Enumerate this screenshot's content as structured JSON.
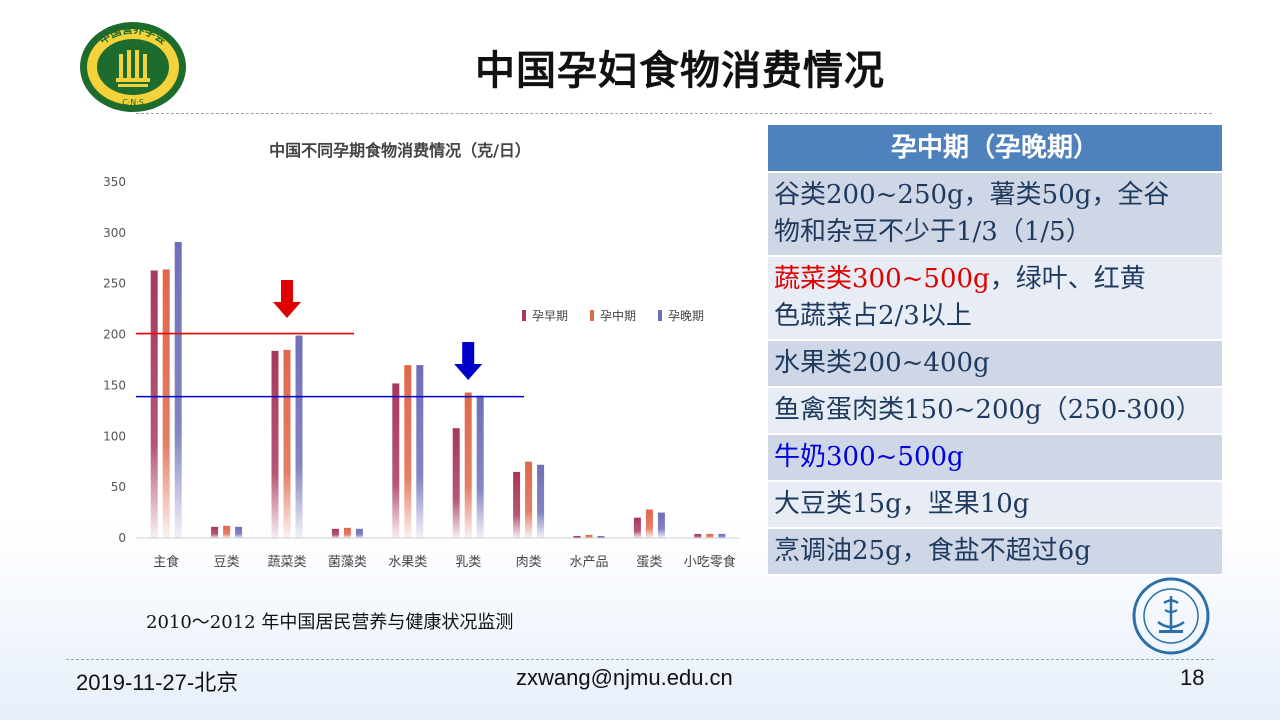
{
  "slide": {
    "title": "中国孕妇食物消费情况",
    "source": "2010～2012 年中国居民营养与健康状况监测",
    "logo_left_text": "中国营养学会",
    "logo_left_sub": "C·N·S",
    "footer_left": "2019-11-27-北京",
    "footer_mid": "zxwang@njmu.edu.cn",
    "footer_right": "18"
  },
  "chart_data": {
    "type": "bar",
    "title": "中国不同孕期食物消费情况（克/日）",
    "categories": [
      "主食",
      "豆类",
      "蔬菜类",
      "菌藻类",
      "水果类",
      "乳类",
      "肉类",
      "水产品",
      "蛋类",
      "小吃零食"
    ],
    "series": [
      {
        "name": "孕早期",
        "color": "#a8385c",
        "values": [
          263,
          11,
          184,
          9,
          152,
          108,
          65,
          2,
          20,
          4
        ]
      },
      {
        "name": "孕中期",
        "color": "#e0674a",
        "values": [
          264,
          12,
          185,
          10,
          170,
          143,
          75,
          3,
          28,
          4
        ]
      },
      {
        "name": "孕晚期",
        "color": "#6f6fb8",
        "values": [
          291,
          11,
          199,
          9,
          170,
          140,
          72,
          2,
          25,
          4
        ]
      }
    ],
    "ylim": [
      0,
      350
    ],
    "yticks": [
      0,
      50,
      100,
      150,
      200,
      250,
      300,
      350
    ],
    "grid": false,
    "legend": "right",
    "reference_lines": [
      {
        "value": 201,
        "color": "#e00000"
      },
      {
        "value": 139,
        "color": "#0000cc"
      }
    ],
    "arrows": [
      {
        "category": "蔬菜类",
        "color": "#e00000"
      },
      {
        "category": "乳类",
        "color": "#0000cc"
      }
    ]
  },
  "table": {
    "header": "孕中期（孕晚期）",
    "rows": [
      {
        "text": "谷类200~250g，薯类50g，全谷物和杂豆不少于1/3（1/5）",
        "line1": "谷类200~250g，薯类50g，全谷",
        "line2": "物和杂豆不少于1/3（1/5）"
      },
      {
        "text_red": "蔬菜类300~500g",
        "text_rest": "，绿叶、红黄",
        "line2": "色蔬菜占2/3以上"
      },
      {
        "text": "水果类200~400g"
      },
      {
        "text": "鱼禽蛋肉类150~200g（250-300）"
      },
      {
        "text_blue": "牛奶300~500g"
      },
      {
        "text": "大豆类15g，坚果10g"
      },
      {
        "text": "烹调油25g，食盐不超过6g"
      }
    ]
  }
}
